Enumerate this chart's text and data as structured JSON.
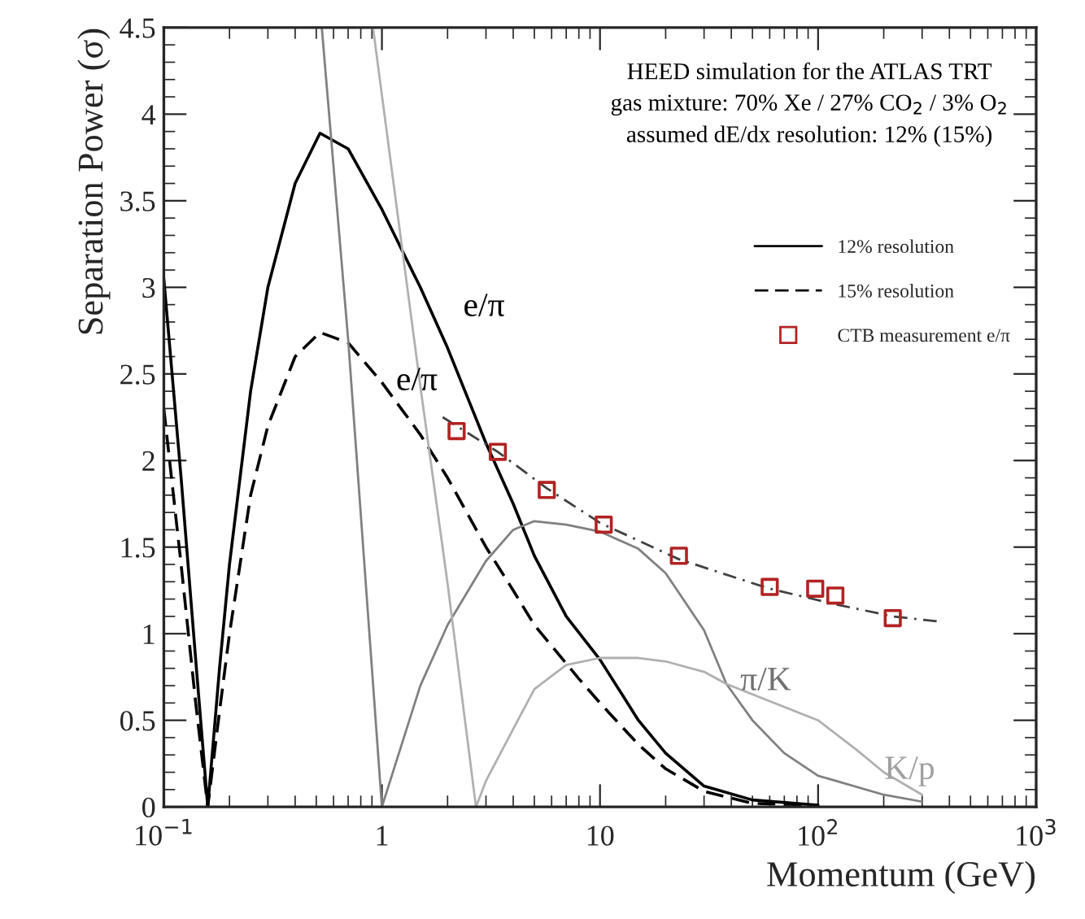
{
  "chart_data": {
    "type": "line",
    "xlabel": "Momentum (GeV)",
    "ylabel": "Separation Power (σ)",
    "log": "x",
    "grid": false,
    "legend": "right",
    "xlim": [
      0.1,
      1000
    ],
    "xticks": [
      {
        "value": 0.1,
        "label": "10$^{−1}$"
      },
      1,
      10,
      {
        "value": 100,
        "label": "10$^{2}$"
      },
      {
        "value": 1000,
        "label": "10$^{3}$"
      }
    ],
    "ylim": [
      0,
      4.5
    ],
    "yticks": [
      0,
      0.5,
      1,
      1.5,
      2,
      2.5,
      3,
      3.5,
      4,
      4.5
    ],
    "series": [
      {
        "name": "12% resolution",
        "color": "#000000",
        "line_style": "solid",
        "x": [
          0.1,
          0.12,
          0.14,
          0.159,
          0.18,
          0.2,
          0.25,
          0.3,
          0.4,
          0.52,
          0.7,
          1,
          1.5,
          2,
          3,
          4,
          5,
          7,
          10,
          15,
          20,
          30,
          50,
          100
        ],
        "values": [
          3.05,
          1.9,
          0.85,
          0,
          0.8,
          1.4,
          2.4,
          3.0,
          3.6,
          3.89,
          3.8,
          3.45,
          3.0,
          2.65,
          2.1,
          1.75,
          1.45,
          1.1,
          0.85,
          0.5,
          0.31,
          0.12,
          0.04,
          0.01
        ]
      },
      {
        "name": "15% resolution",
        "color": "#000000",
        "line_style": "dashed",
        "x": [
          0.1,
          0.12,
          0.14,
          0.159,
          0.18,
          0.2,
          0.25,
          0.3,
          0.4,
          0.52,
          0.7,
          1,
          1.5,
          2,
          3,
          4,
          5,
          8,
          10,
          15,
          20,
          30,
          50,
          100
        ],
        "values": [
          2.3,
          1.4,
          0.6,
          0,
          0.55,
          1.0,
          1.8,
          2.2,
          2.6,
          2.74,
          2.68,
          2.45,
          2.15,
          1.9,
          1.5,
          1.25,
          1.05,
          0.74,
          0.6,
          0.36,
          0.22,
          0.09,
          0.02,
          0.01
        ]
      },
      {
        "color": "#808080",
        "line_style": "solid",
        "x": [
          0.53,
          0.7,
          1,
          1.5,
          2,
          3,
          4,
          5,
          7,
          10,
          15,
          20,
          30,
          38,
          50,
          70,
          100,
          200,
          300
        ],
        "values": [
          4.5,
          2.7,
          0,
          0.7,
          1.05,
          1.42,
          1.6,
          1.65,
          1.63,
          1.59,
          1.49,
          1.35,
          1.02,
          0.71,
          0.5,
          0.31,
          0.18,
          0.07,
          0.03
        ]
      },
      {
        "color": "#b0b0b0",
        "line_style": "solid",
        "x": [
          0.91,
          1.5,
          2,
          2.7,
          3,
          4,
          5,
          7,
          10,
          15,
          20,
          30,
          38,
          50,
          100,
          150,
          200,
          300
        ],
        "values": [
          4.5,
          2.43,
          1.29,
          0,
          0.15,
          0.45,
          0.68,
          0.82,
          0.86,
          0.86,
          0.84,
          0.78,
          0.71,
          0.65,
          0.5,
          0.33,
          0.2,
          0.07
        ]
      },
      {
        "color": "#404040",
        "line_style": "dashdot",
        "x": [
          1.9,
          3.4,
          5.7,
          10,
          23,
          60,
          120,
          220,
          360
        ],
        "values": [
          2.25,
          2.05,
          1.84,
          1.64,
          1.43,
          1.26,
          1.17,
          1.1,
          1.07
        ]
      },
      {
        "name": "CTB measurement e/π",
        "type": "scatter",
        "color": "#b22222",
        "marker": "square",
        "x": [
          2.2,
          3.4,
          5.7,
          10.4,
          23,
          60,
          97,
          120,
          220
        ],
        "values": [
          2.17,
          2.05,
          1.83,
          1.63,
          1.45,
          1.27,
          1.26,
          1.22,
          1.09
        ]
      }
    ],
    "annotations": [
      "HEED simulation for the ATLAS TRT\ngas mixture: 70% Xe / 27% CO$_{2}$ / 3% O$_{2}$\nassumed dE/dx resolution: 12% (15%)",
      "e/π",
      "e/π",
      "π/K",
      "K/p"
    ]
  }
}
